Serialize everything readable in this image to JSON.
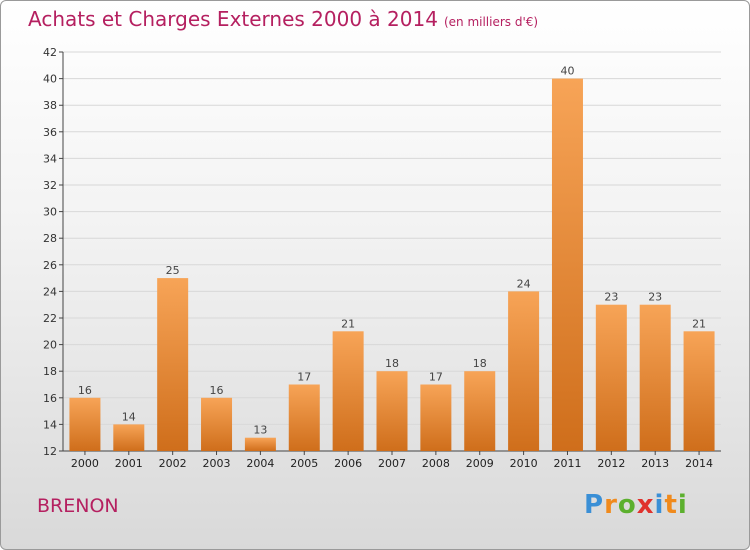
{
  "title": "Achats et Charges Externes 2000 à 2014",
  "subtitle": "(en milliers d'€)",
  "commune": "BRENON",
  "logo": {
    "letters": [
      "P",
      "r",
      "o",
      "x",
      "i",
      "t",
      "i"
    ],
    "colors": [
      "#3a8fd6",
      "#f08a1c",
      "#5cb02e",
      "#e0322d",
      "#3a8fd6",
      "#f08a1c",
      "#5cb02e"
    ]
  },
  "colors": {
    "bar_light": "#f7a457",
    "bar_dark": "#cf6e1b",
    "accent": "#b52060"
  },
  "chart_data": {
    "type": "bar",
    "title": "Achats et Charges Externes 2000 à 2014",
    "subtitle": "(en milliers d'€)",
    "categories": [
      "2000",
      "2001",
      "2002",
      "2003",
      "2004",
      "2005",
      "2006",
      "2007",
      "2008",
      "2009",
      "2010",
      "2011",
      "2012",
      "2013",
      "2014"
    ],
    "values": [
      16,
      14,
      25,
      16,
      13,
      17,
      21,
      18,
      17,
      18,
      24,
      40,
      23,
      23,
      21
    ],
    "ylim": [
      12,
      42
    ],
    "yticks": [
      12,
      14,
      16,
      18,
      20,
      22,
      24,
      26,
      28,
      30,
      32,
      34,
      36,
      38,
      40,
      42
    ],
    "grid": true,
    "legend": "none"
  }
}
